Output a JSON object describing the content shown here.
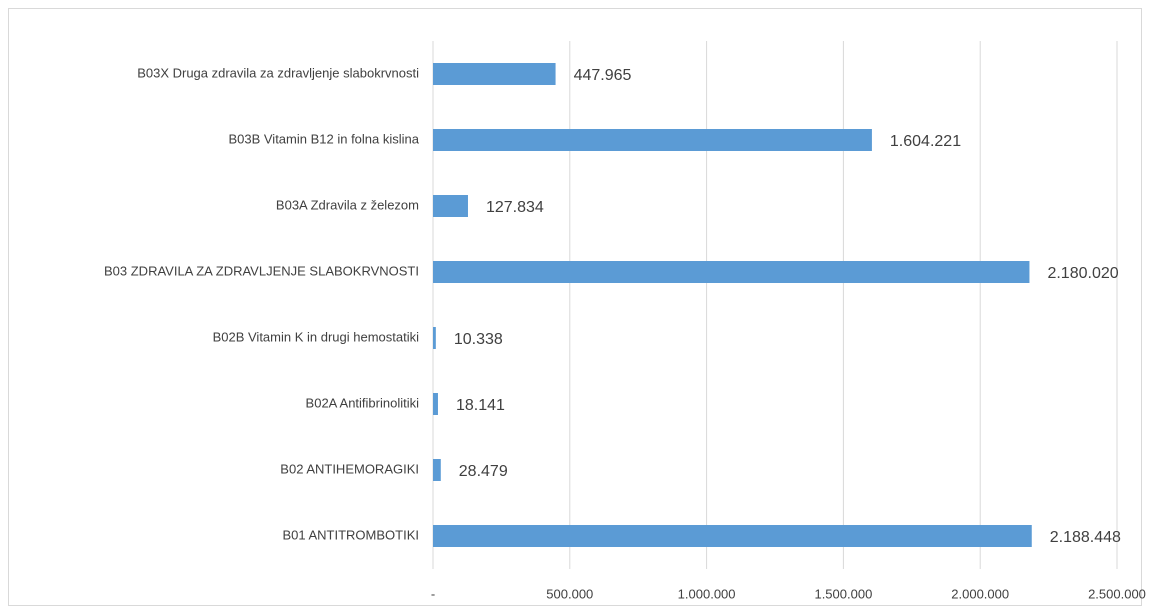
{
  "chart_data": {
    "type": "bar",
    "orientation": "horizontal",
    "categories": [
      "B03X Druga zdravila za zdravljenje slabokrvnosti",
      "B03B Vitamin B12 in folna kislina",
      "B03A Zdravila z železom",
      "B03 ZDRAVILA ZA ZDRAVLJENJE SLABOKRVNOSTI",
      "B02B Vitamin K in drugi hemostatiki",
      "B02A Antifibrinolitiki",
      "B02 ANTIHEMORAGIKI",
      "B01 ANTITROMBOTIKI"
    ],
    "values": [
      447965,
      1604221,
      127834,
      2180020,
      10338,
      18141,
      28479,
      2188448
    ],
    "value_labels": [
      "447.965",
      "1.604.221",
      "127.834",
      "2.180.020",
      "10.338",
      "18.141",
      "28.479",
      "2.188.448"
    ],
    "color": "#5b9bd5",
    "xlim": [
      0,
      2500000
    ],
    "xticks": [
      {
        "value": 0,
        "label": "-"
      },
      {
        "value": 500000,
        "label": "500.000"
      },
      {
        "value": 1000000,
        "label": "1.000.000"
      },
      {
        "value": 1500000,
        "label": "1.500.000"
      },
      {
        "value": 2000000,
        "label": "2.000.000"
      },
      {
        "value": 2500000,
        "label": "2.500.000"
      }
    ],
    "grid": true
  }
}
